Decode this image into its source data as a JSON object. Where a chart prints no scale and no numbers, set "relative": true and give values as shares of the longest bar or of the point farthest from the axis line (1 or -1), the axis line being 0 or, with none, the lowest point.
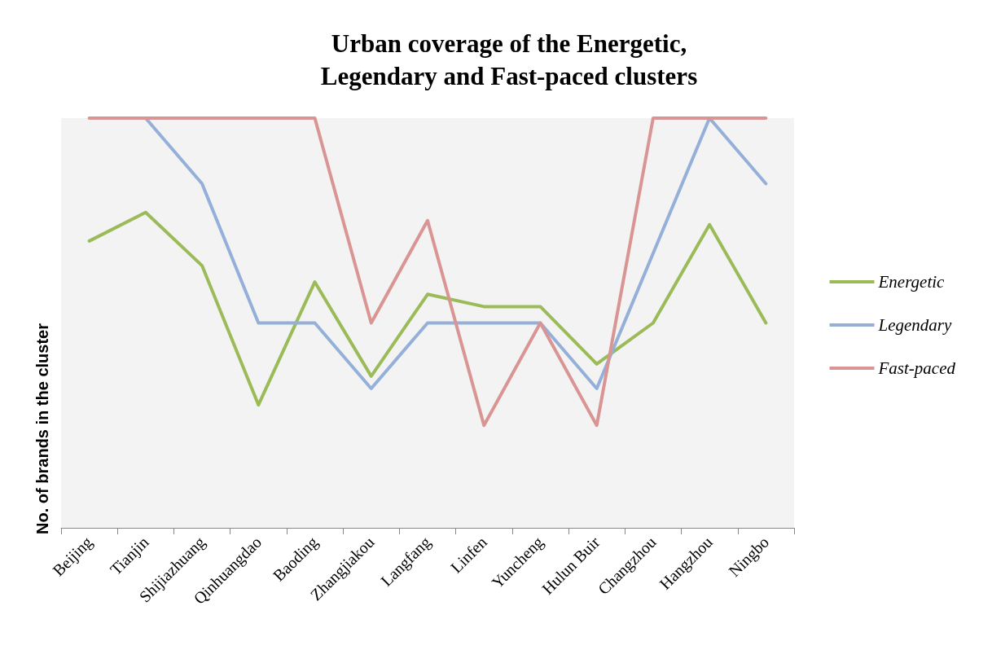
{
  "chart_data": {
    "type": "line",
    "title": "Urban coverage of the Energetic,\nLegendary and Fast-paced clusters",
    "ylabel": "No. of brands in the cluster",
    "relative": true,
    "categories": [
      "Beijing",
      "Tianjin",
      "Shijiazhuang",
      "Qinhuangdao",
      "Baoding",
      "Zhangjiakou",
      "Langfang",
      "Linfen",
      "Yuncheng",
      "Hulun Buir",
      "Changzhou",
      "Hangzhou",
      "Ningbo"
    ],
    "series": [
      {
        "name": "Energetic",
        "color": "#9bbb59",
        "values": [
          0.7,
          0.77,
          0.64,
          0.3,
          0.6,
          0.37,
          0.57,
          0.54,
          0.54,
          0.4,
          0.5,
          0.74,
          0.5
        ]
      },
      {
        "name": "Legendary",
        "color": "#95b0d8",
        "values": [
          null,
          1,
          0.84,
          0.5,
          0.5,
          0.34,
          0.5,
          0.5,
          0.5,
          0.34,
          0.67,
          1,
          0.84
        ]
      },
      {
        "name": "Fast-paced",
        "color": "#d99594",
        "values": [
          1,
          1,
          1,
          1,
          1,
          0.5,
          0.75,
          0.25,
          0.5,
          0.25,
          1,
          1,
          1
        ]
      }
    ],
    "legend": "right",
    "grid": false,
    "marker": "none",
    "line_style": "solid"
  }
}
